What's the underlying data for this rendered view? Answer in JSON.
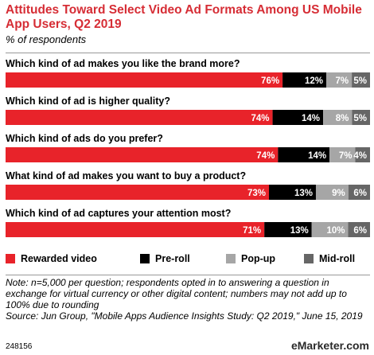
{
  "title": "Attitudes Toward Select Video Ad Formats Among US Mobile App Users, Q2 2019",
  "subtitle": "% of respondents",
  "note": "Note: n=5,000 per question; respondents opted in to answering a question in exchange for virtual currency or other digital content; numbers may not add up to 100% due to rounding",
  "source": "Source: Jun Group, \"Mobile Apps Audience Insights Study: Q2 2019,\" June 15, 2019",
  "footer_id": "248156",
  "brand": "eMarketer.com",
  "chart_data": {
    "type": "bar",
    "orientation": "horizontal",
    "stacked": true,
    "categories": [
      "Which kind of ad makes you like the brand more?",
      "Which kind of ad is higher quality?",
      "Which kind of ads do you prefer?",
      "What kind of ad makes you want to buy a product?",
      "Which kind of ad captures your attention most?"
    ],
    "series": [
      {
        "name": "Rewarded video",
        "color": "#e8232a",
        "label_color": "#ffffff",
        "values": [
          76,
          74,
          74,
          73,
          71
        ]
      },
      {
        "name": "Pre-roll",
        "color": "#000000",
        "label_color": "#ffffff",
        "values": [
          12,
          14,
          14,
          13,
          13
        ]
      },
      {
        "name": "Pop-up",
        "color": "#a6a6a6",
        "label_color": "#ffffff",
        "values": [
          7,
          8,
          7,
          9,
          10
        ]
      },
      {
        "name": "Mid-roll",
        "color": "#666666",
        "label_color": "#ffffff",
        "values": [
          5,
          5,
          4,
          6,
          6
        ]
      }
    ],
    "value_suffix": "%",
    "xlim": [
      0,
      100
    ],
    "legend": "bottom",
    "grid": false
  }
}
